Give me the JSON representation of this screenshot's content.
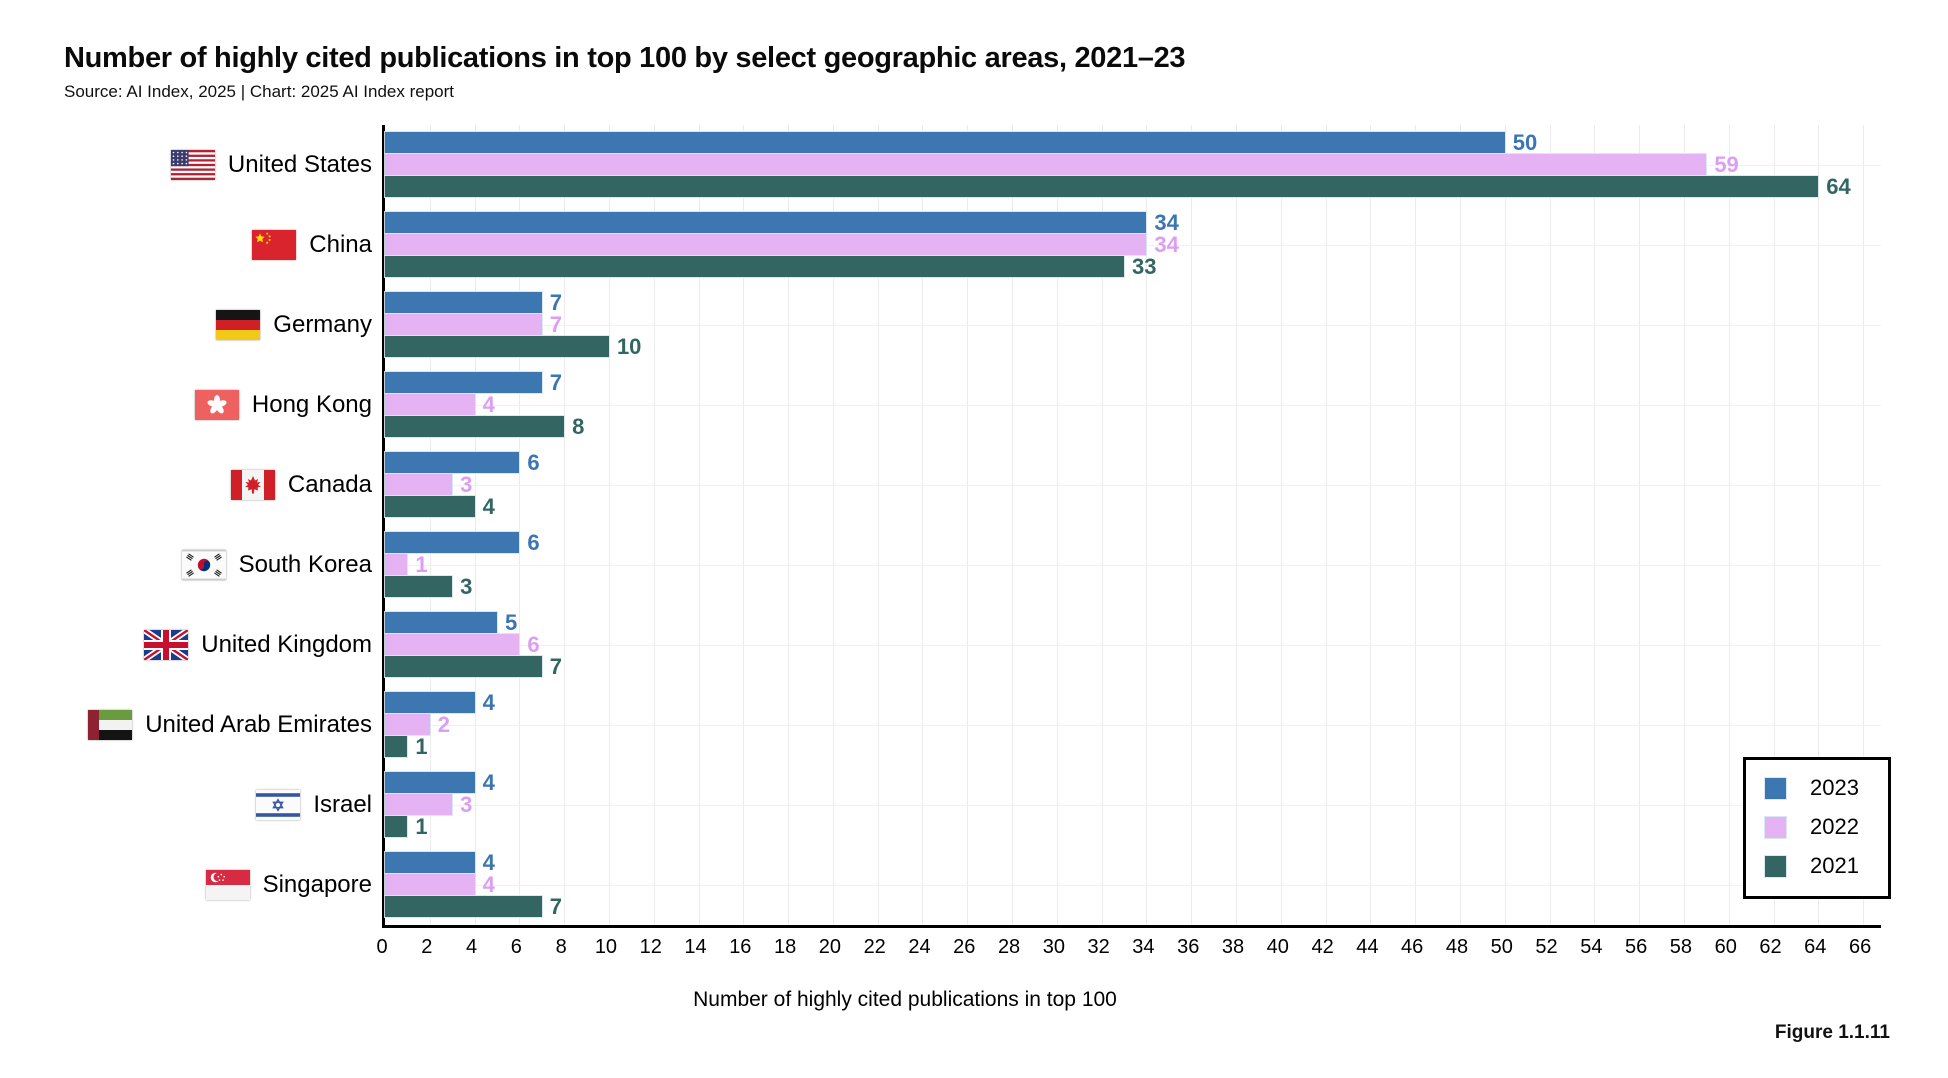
{
  "header": {
    "title": "Number of highly cited publications in top 100 by select geographic areas, 2021–23",
    "subtitle": "Source: AI Index, 2025 | Chart: 2025 AI Index report"
  },
  "figure_label": "Figure 1.1.11",
  "legend": {
    "position": "bottom-right"
  },
  "chart_data": {
    "type": "bar",
    "orientation": "horizontal",
    "title": "Number of highly cited publications in top 100 by select geographic areas, 2021–23",
    "xlabel": "Number of highly cited publications in top 100",
    "ylabel": "",
    "xlim": [
      0,
      66
    ],
    "x_tick_min": 0,
    "x_tick_max": 66,
    "x_tick_step": 2,
    "grid": "vertical",
    "legend_position": "bottom-right",
    "categories": [
      {
        "label": "United States",
        "flag_icon": "united-states-flag-icon"
      },
      {
        "label": "China",
        "flag_icon": "china-flag-icon"
      },
      {
        "label": "Germany",
        "flag_icon": "germany-flag-icon"
      },
      {
        "label": "Hong Kong",
        "flag_icon": "hong-kong-flag-icon"
      },
      {
        "label": "Canada",
        "flag_icon": "canada-flag-icon"
      },
      {
        "label": "South Korea",
        "flag_icon": "south-korea-flag-icon"
      },
      {
        "label": "United Kingdom",
        "flag_icon": "united-kingdom-flag-icon"
      },
      {
        "label": "United Arab Emirates",
        "flag_icon": "united-arab-emirates-flag-icon"
      },
      {
        "label": "Israel",
        "flag_icon": "israel-flag-icon"
      },
      {
        "label": "Singapore",
        "flag_icon": "singapore-flag-icon"
      }
    ],
    "series": [
      {
        "name": "2023",
        "color": "#3d77b2",
        "label_color": "#3b76b0",
        "values": [
          50,
          34,
          7,
          7,
          6,
          6,
          5,
          4,
          4,
          4
        ]
      },
      {
        "name": "2022",
        "color": "#e5b3f3",
        "label_color": "#dc9ef2",
        "values": [
          59,
          34,
          7,
          4,
          3,
          1,
          6,
          2,
          3,
          4
        ]
      },
      {
        "name": "2021",
        "color": "#336663",
        "label_color": "#336663",
        "values": [
          64,
          33,
          10,
          8,
          4,
          3,
          7,
          1,
          1,
          7
        ]
      }
    ]
  }
}
